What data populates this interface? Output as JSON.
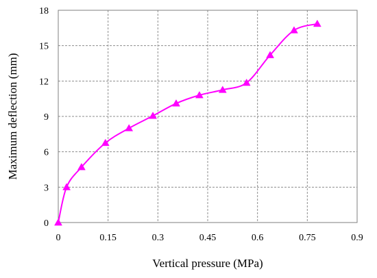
{
  "chart_data": {
    "type": "line",
    "title": "",
    "xlabel": "Vertical pressure (MPa)",
    "ylabel": "Maximum deflection (mm)",
    "xlim": [
      0,
      0.9
    ],
    "ylim": [
      0,
      18
    ],
    "x_ticks": [
      0,
      0.15,
      0.3,
      0.45,
      0.6,
      0.75,
      0.9
    ],
    "x_tick_labels": [
      "0",
      "0.15",
      "0.3",
      "0.45",
      "0.6",
      "0.75",
      "0.9"
    ],
    "y_ticks": [
      0,
      3,
      6,
      9,
      12,
      15,
      18
    ],
    "y_tick_labels": [
      "0",
      "3",
      "6",
      "9",
      "12",
      "15",
      "18"
    ],
    "grid": true,
    "grid_style": "dashed",
    "legend": "none",
    "marker": "triangle",
    "color": "#ff00ff",
    "series": [
      {
        "x": [
          0,
          0.025,
          0.07,
          0.142,
          0.213,
          0.285,
          0.355,
          0.425,
          0.495,
          0.567,
          0.638,
          0.71,
          0.78
        ],
        "y": [
          0,
          3.0,
          4.7,
          6.75,
          8.0,
          9.05,
          10.1,
          10.8,
          11.25,
          11.85,
          14.2,
          16.3,
          16.85
        ]
      }
    ]
  }
}
